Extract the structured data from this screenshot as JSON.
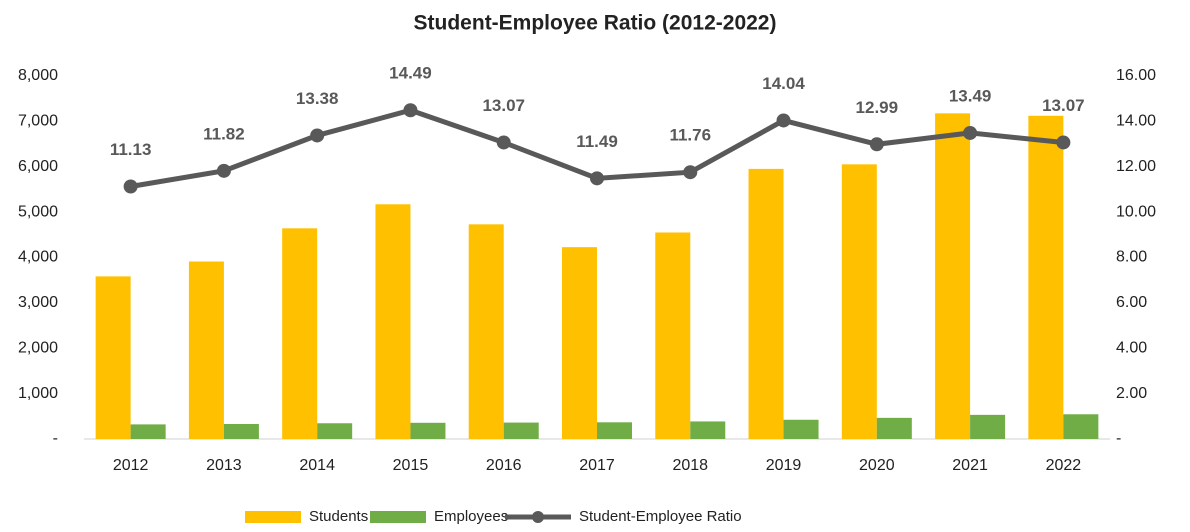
{
  "chart_data": {
    "type": "bar",
    "title": "Student-Employee Ratio (2012-2022)",
    "categories": [
      "2012",
      "2013",
      "2014",
      "2015",
      "2016",
      "2017",
      "2018",
      "2019",
      "2020",
      "2021",
      "2022"
    ],
    "series": [
      {
        "name": "Students",
        "color": "#FFC000",
        "type": "bar",
        "values": [
          3584,
          3912,
          4643,
          5173,
          4731,
          4228,
          4551,
          5953,
          6053,
          7177,
          7123
        ]
      },
      {
        "name": "Employees",
        "color": "#70AD47",
        "type": "bar",
        "values": [
          322,
          331,
          347,
          357,
          362,
          368,
          387,
          424,
          466,
          532,
          545
        ]
      },
      {
        "name": "Student-Employee Ratio",
        "color": "#595959",
        "type": "line",
        "axis": "y2",
        "values": [
          11.13,
          11.82,
          13.38,
          14.49,
          13.07,
          11.49,
          11.76,
          14.04,
          12.99,
          13.49,
          13.07
        ]
      }
    ],
    "ylim": [
      0,
      8000
    ],
    "yticks": [
      {
        "value": 0,
        "label": "-"
      },
      {
        "value": 1000,
        "label": "1,000"
      },
      {
        "value": 2000,
        "label": "2,000"
      },
      {
        "value": 3000,
        "label": "3,000"
      },
      {
        "value": 4000,
        "label": "4,000"
      },
      {
        "value": 5000,
        "label": "5,000"
      },
      {
        "value": 6000,
        "label": "6,000"
      },
      {
        "value": 7000,
        "label": "7,000"
      },
      {
        "value": 8000,
        "label": "8,000"
      }
    ],
    "y2lim": [
      0,
      16
    ],
    "y2ticks": [
      {
        "value": 0,
        "label": "-"
      },
      {
        "value": 2,
        "label": "2.00"
      },
      {
        "value": 4,
        "label": "4.00"
      },
      {
        "value": 6,
        "label": "6.00"
      },
      {
        "value": 8,
        "label": "8.00"
      },
      {
        "value": 10,
        "label": "10.00"
      },
      {
        "value": 12,
        "label": "12.00"
      },
      {
        "value": 14,
        "label": "14.00"
      },
      {
        "value": 16,
        "label": "16.00"
      }
    ],
    "legend": "bottom",
    "grid": false
  }
}
